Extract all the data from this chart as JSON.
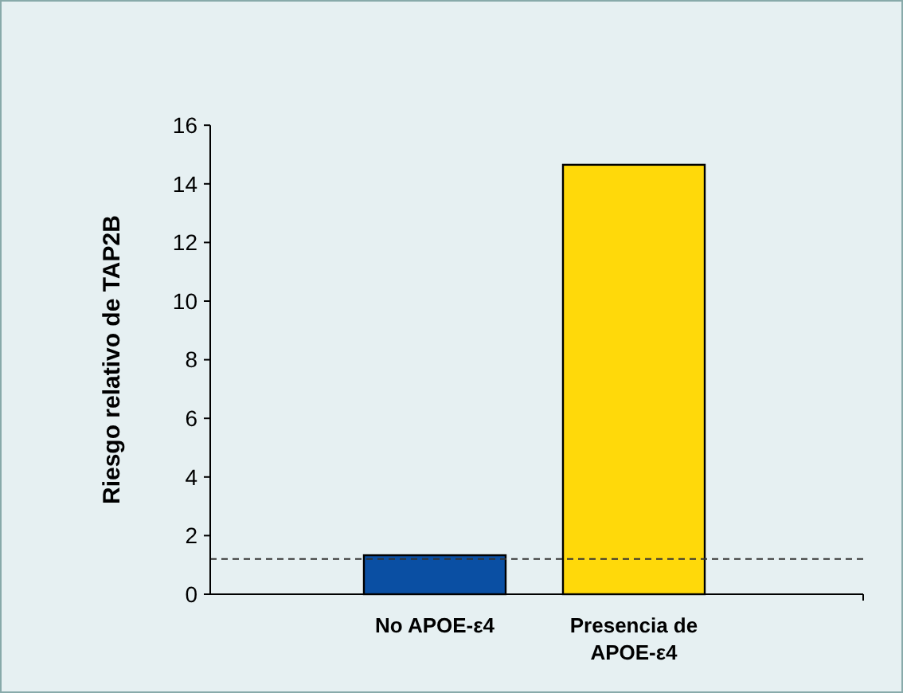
{
  "chart_data": {
    "type": "bar",
    "ylabel": "Riesgo relativo de TAP2B",
    "categories": [
      "No APOE-ε4",
      "Presencia de APOE-ε4"
    ],
    "values": [
      1.33,
      14.65
    ],
    "colors": [
      "#0a4fa3",
      "#ffd90a"
    ],
    "ylim": [
      0,
      16
    ],
    "yticks": [
      0,
      2,
      4,
      6,
      8,
      10,
      12,
      14,
      16
    ],
    "ref_lines": [
      {
        "axis": "y",
        "value": 1.2,
        "line_style": "dashed",
        "color": "#333333"
      }
    ]
  }
}
